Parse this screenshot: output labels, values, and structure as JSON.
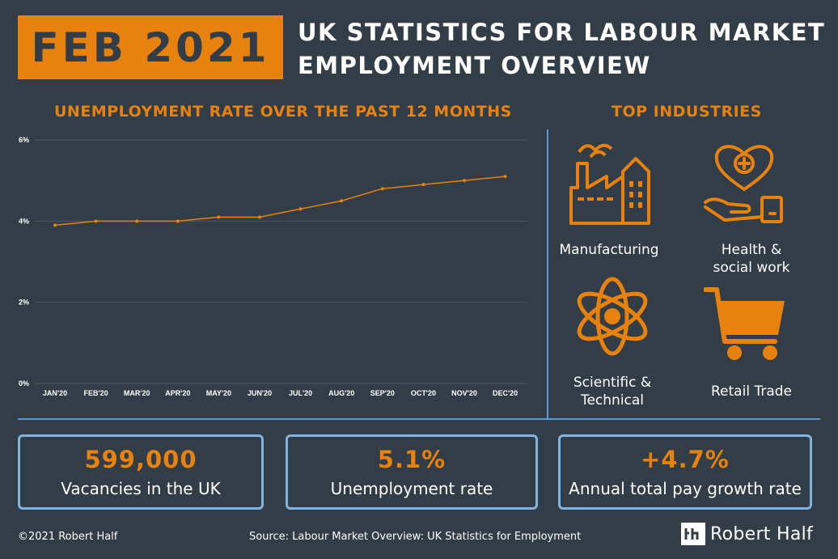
{
  "header": {
    "badge": "FEB 2021",
    "title_line1": "UK STATISTICS FOR LABOUR MARKET",
    "title_line2": "EMPLOYMENT OVERVIEW"
  },
  "chart_title": "UNEMPLOYMENT RATE OVER THE PAST 12 MONTHS",
  "industries_title": "TOP INDUSTRIES",
  "chart_data": {
    "type": "line",
    "title": "UNEMPLOYMENT RATE OVER THE PAST 12 MONTHS",
    "categories": [
      "JAN'20",
      "FEB'20",
      "MAR'20",
      "APR'20",
      "MAY'20",
      "JUN'20",
      "JUL'20",
      "AUG'20",
      "SEP'20",
      "OCT'20",
      "NOV'20",
      "DEC'20"
    ],
    "series": [
      {
        "values": [
          3.9,
          4.0,
          4.0,
          4.0,
          4.1,
          4.1,
          4.3,
          4.5,
          4.8,
          4.9,
          5.0,
          5.1
        ]
      }
    ],
    "yticks": [
      "0%",
      "2%",
      "4%",
      "6%"
    ],
    "ylim": [
      0,
      6
    ],
    "grid": true,
    "line_color": "#e8820e"
  },
  "industries": [
    {
      "icon": "factory-icon",
      "label_lines": [
        "Manufacturing"
      ]
    },
    {
      "icon": "heart-hand-icon",
      "label_lines": [
        "Health &",
        "social work"
      ]
    },
    {
      "icon": "atom-icon",
      "label_lines": [
        "Scientific &",
        "Technical"
      ]
    },
    {
      "icon": "shopping-cart-icon",
      "label_lines": [
        "Retail Trade"
      ]
    }
  ],
  "stats": [
    {
      "value": "599,000",
      "label": "Vacancies in the UK"
    },
    {
      "value": "5.1%",
      "label": "Unemployment rate"
    },
    {
      "value": "+4.7%",
      "label": "Annual total pay growth rate"
    }
  ],
  "footer": {
    "copyright": "©2021 Robert Half",
    "source": "Source: Labour Market Overview: UK Statistics for Employment",
    "brand": "Robert Half"
  },
  "colors": {
    "background": "#333d47",
    "accent": "#e8820e",
    "divider": "#5b9bd5",
    "box_border": "#7fb4e0"
  }
}
